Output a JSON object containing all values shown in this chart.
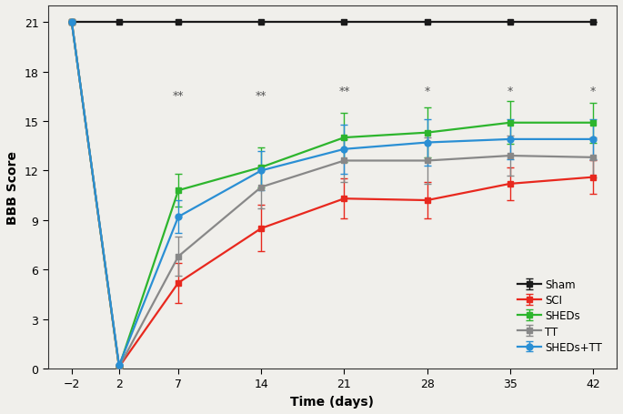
{
  "x": [
    -2,
    2,
    7,
    14,
    21,
    28,
    35,
    42
  ],
  "sham": {
    "y": [
      21,
      21,
      21,
      21,
      21,
      21,
      21,
      21
    ],
    "yerr": [
      0,
      0,
      0,
      0,
      0,
      0,
      0,
      0
    ],
    "color": "#1a1a1a",
    "label": "Sham",
    "marker": "s",
    "markersize": 5
  },
  "sci": {
    "y": [
      21,
      0.1,
      5.2,
      8.5,
      10.3,
      10.2,
      11.2,
      11.6
    ],
    "yerr": [
      0,
      0,
      1.2,
      1.4,
      1.2,
      1.1,
      1.0,
      1.0
    ],
    "color": "#e8281e",
    "label": "SCI",
    "marker": "s",
    "markersize": 5
  },
  "sheds": {
    "y": [
      21,
      0.1,
      10.8,
      12.2,
      14.0,
      14.3,
      14.9,
      14.9
    ],
    "yerr": [
      0,
      0,
      1.0,
      1.2,
      1.5,
      1.5,
      1.3,
      1.2
    ],
    "color": "#2db52d",
    "label": "SHEDs",
    "marker": "s",
    "markersize": 5
  },
  "tt": {
    "y": [
      21,
      0.1,
      6.8,
      11.0,
      12.6,
      12.6,
      12.9,
      12.8
    ],
    "yerr": [
      0,
      0,
      1.2,
      1.3,
      1.3,
      1.4,
      1.2,
      1.2
    ],
    "color": "#888888",
    "label": "TT",
    "marker": "s",
    "markersize": 5
  },
  "sheds_tt": {
    "y": [
      21,
      0.2,
      9.2,
      12.0,
      13.3,
      13.7,
      13.9,
      13.9
    ],
    "yerr": [
      0,
      0,
      1.0,
      1.2,
      1.5,
      1.4,
      1.2,
      1.2
    ],
    "color": "#2a8fd4",
    "label": "SHEDs+TT",
    "marker": "o",
    "markersize": 5
  },
  "significance": {
    "x": [
      7,
      14,
      21,
      28,
      35,
      42
    ],
    "labels": [
      "**",
      "**",
      "**",
      "*",
      "*",
      "*"
    ],
    "y": [
      16.2,
      16.2,
      16.5,
      16.5,
      16.5,
      16.5
    ]
  },
  "xlabel": "Time (days)",
  "ylabel": "BBB Score",
  "xlim": [
    -4,
    44
  ],
  "ylim": [
    0,
    22
  ],
  "yticks": [
    0,
    3,
    6,
    9,
    12,
    15,
    18,
    21
  ],
  "xticks": [
    -2,
    2,
    7,
    14,
    21,
    28,
    35,
    42
  ],
  "bg_color": "#f0efeb",
  "legend_labels": [
    "Sham",
    "SCI",
    "SHEDs",
    "TT",
    "SHEDs+TT"
  ]
}
